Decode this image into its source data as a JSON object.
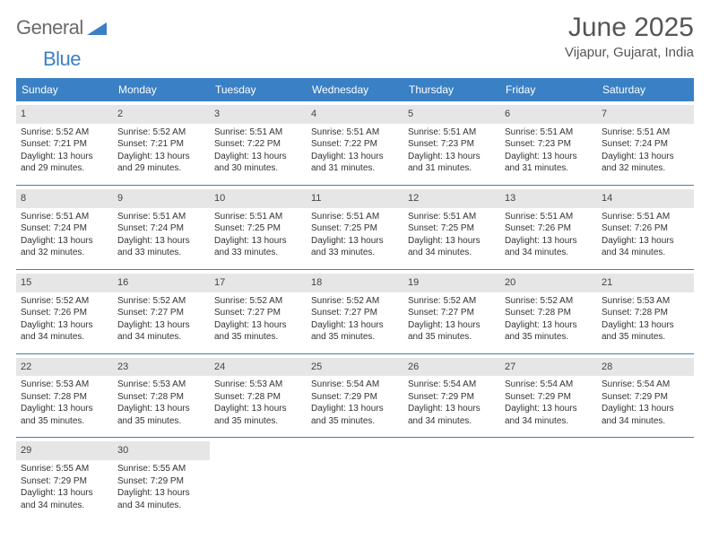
{
  "brand": {
    "word1": "General",
    "word2": "Blue"
  },
  "title": "June 2025",
  "location": "Vijapur, Gujarat, India",
  "colors": {
    "header_bg": "#3a80c4",
    "header_text": "#ffffff",
    "daynum_bg": "#e6e6e6",
    "body_text": "#333333",
    "page_bg": "#ffffff",
    "logo_gray": "#6b6b6b",
    "logo_blue": "#3a80c4"
  },
  "typography": {
    "title_fontsize": 30,
    "location_fontsize": 15,
    "header_cell_fontsize": 12,
    "body_fontsize": 10
  },
  "weekdays": [
    "Sunday",
    "Monday",
    "Tuesday",
    "Wednesday",
    "Thursday",
    "Friday",
    "Saturday"
  ],
  "weeks": [
    [
      {
        "n": "1",
        "sr": "Sunrise: 5:52 AM",
        "ss": "Sunset: 7:21 PM",
        "d1": "Daylight: 13 hours",
        "d2": "and 29 minutes."
      },
      {
        "n": "2",
        "sr": "Sunrise: 5:52 AM",
        "ss": "Sunset: 7:21 PM",
        "d1": "Daylight: 13 hours",
        "d2": "and 29 minutes."
      },
      {
        "n": "3",
        "sr": "Sunrise: 5:51 AM",
        "ss": "Sunset: 7:22 PM",
        "d1": "Daylight: 13 hours",
        "d2": "and 30 minutes."
      },
      {
        "n": "4",
        "sr": "Sunrise: 5:51 AM",
        "ss": "Sunset: 7:22 PM",
        "d1": "Daylight: 13 hours",
        "d2": "and 31 minutes."
      },
      {
        "n": "5",
        "sr": "Sunrise: 5:51 AM",
        "ss": "Sunset: 7:23 PM",
        "d1": "Daylight: 13 hours",
        "d2": "and 31 minutes."
      },
      {
        "n": "6",
        "sr": "Sunrise: 5:51 AM",
        "ss": "Sunset: 7:23 PM",
        "d1": "Daylight: 13 hours",
        "d2": "and 31 minutes."
      },
      {
        "n": "7",
        "sr": "Sunrise: 5:51 AM",
        "ss": "Sunset: 7:24 PM",
        "d1": "Daylight: 13 hours",
        "d2": "and 32 minutes."
      }
    ],
    [
      {
        "n": "8",
        "sr": "Sunrise: 5:51 AM",
        "ss": "Sunset: 7:24 PM",
        "d1": "Daylight: 13 hours",
        "d2": "and 32 minutes."
      },
      {
        "n": "9",
        "sr": "Sunrise: 5:51 AM",
        "ss": "Sunset: 7:24 PM",
        "d1": "Daylight: 13 hours",
        "d2": "and 33 minutes."
      },
      {
        "n": "10",
        "sr": "Sunrise: 5:51 AM",
        "ss": "Sunset: 7:25 PM",
        "d1": "Daylight: 13 hours",
        "d2": "and 33 minutes."
      },
      {
        "n": "11",
        "sr": "Sunrise: 5:51 AM",
        "ss": "Sunset: 7:25 PM",
        "d1": "Daylight: 13 hours",
        "d2": "and 33 minutes."
      },
      {
        "n": "12",
        "sr": "Sunrise: 5:51 AM",
        "ss": "Sunset: 7:25 PM",
        "d1": "Daylight: 13 hours",
        "d2": "and 34 minutes."
      },
      {
        "n": "13",
        "sr": "Sunrise: 5:51 AM",
        "ss": "Sunset: 7:26 PM",
        "d1": "Daylight: 13 hours",
        "d2": "and 34 minutes."
      },
      {
        "n": "14",
        "sr": "Sunrise: 5:51 AM",
        "ss": "Sunset: 7:26 PM",
        "d1": "Daylight: 13 hours",
        "d2": "and 34 minutes."
      }
    ],
    [
      {
        "n": "15",
        "sr": "Sunrise: 5:52 AM",
        "ss": "Sunset: 7:26 PM",
        "d1": "Daylight: 13 hours",
        "d2": "and 34 minutes."
      },
      {
        "n": "16",
        "sr": "Sunrise: 5:52 AM",
        "ss": "Sunset: 7:27 PM",
        "d1": "Daylight: 13 hours",
        "d2": "and 34 minutes."
      },
      {
        "n": "17",
        "sr": "Sunrise: 5:52 AM",
        "ss": "Sunset: 7:27 PM",
        "d1": "Daylight: 13 hours",
        "d2": "and 35 minutes."
      },
      {
        "n": "18",
        "sr": "Sunrise: 5:52 AM",
        "ss": "Sunset: 7:27 PM",
        "d1": "Daylight: 13 hours",
        "d2": "and 35 minutes."
      },
      {
        "n": "19",
        "sr": "Sunrise: 5:52 AM",
        "ss": "Sunset: 7:27 PM",
        "d1": "Daylight: 13 hours",
        "d2": "and 35 minutes."
      },
      {
        "n": "20",
        "sr": "Sunrise: 5:52 AM",
        "ss": "Sunset: 7:28 PM",
        "d1": "Daylight: 13 hours",
        "d2": "and 35 minutes."
      },
      {
        "n": "21",
        "sr": "Sunrise: 5:53 AM",
        "ss": "Sunset: 7:28 PM",
        "d1": "Daylight: 13 hours",
        "d2": "and 35 minutes."
      }
    ],
    [
      {
        "n": "22",
        "sr": "Sunrise: 5:53 AM",
        "ss": "Sunset: 7:28 PM",
        "d1": "Daylight: 13 hours",
        "d2": "and 35 minutes."
      },
      {
        "n": "23",
        "sr": "Sunrise: 5:53 AM",
        "ss": "Sunset: 7:28 PM",
        "d1": "Daylight: 13 hours",
        "d2": "and 35 minutes."
      },
      {
        "n": "24",
        "sr": "Sunrise: 5:53 AM",
        "ss": "Sunset: 7:28 PM",
        "d1": "Daylight: 13 hours",
        "d2": "and 35 minutes."
      },
      {
        "n": "25",
        "sr": "Sunrise: 5:54 AM",
        "ss": "Sunset: 7:29 PM",
        "d1": "Daylight: 13 hours",
        "d2": "and 35 minutes."
      },
      {
        "n": "26",
        "sr": "Sunrise: 5:54 AM",
        "ss": "Sunset: 7:29 PM",
        "d1": "Daylight: 13 hours",
        "d2": "and 34 minutes."
      },
      {
        "n": "27",
        "sr": "Sunrise: 5:54 AM",
        "ss": "Sunset: 7:29 PM",
        "d1": "Daylight: 13 hours",
        "d2": "and 34 minutes."
      },
      {
        "n": "28",
        "sr": "Sunrise: 5:54 AM",
        "ss": "Sunset: 7:29 PM",
        "d1": "Daylight: 13 hours",
        "d2": "and 34 minutes."
      }
    ],
    [
      {
        "n": "29",
        "sr": "Sunrise: 5:55 AM",
        "ss": "Sunset: 7:29 PM",
        "d1": "Daylight: 13 hours",
        "d2": "and 34 minutes."
      },
      {
        "n": "30",
        "sr": "Sunrise: 5:55 AM",
        "ss": "Sunset: 7:29 PM",
        "d1": "Daylight: 13 hours",
        "d2": "and 34 minutes."
      },
      null,
      null,
      null,
      null,
      null
    ]
  ]
}
